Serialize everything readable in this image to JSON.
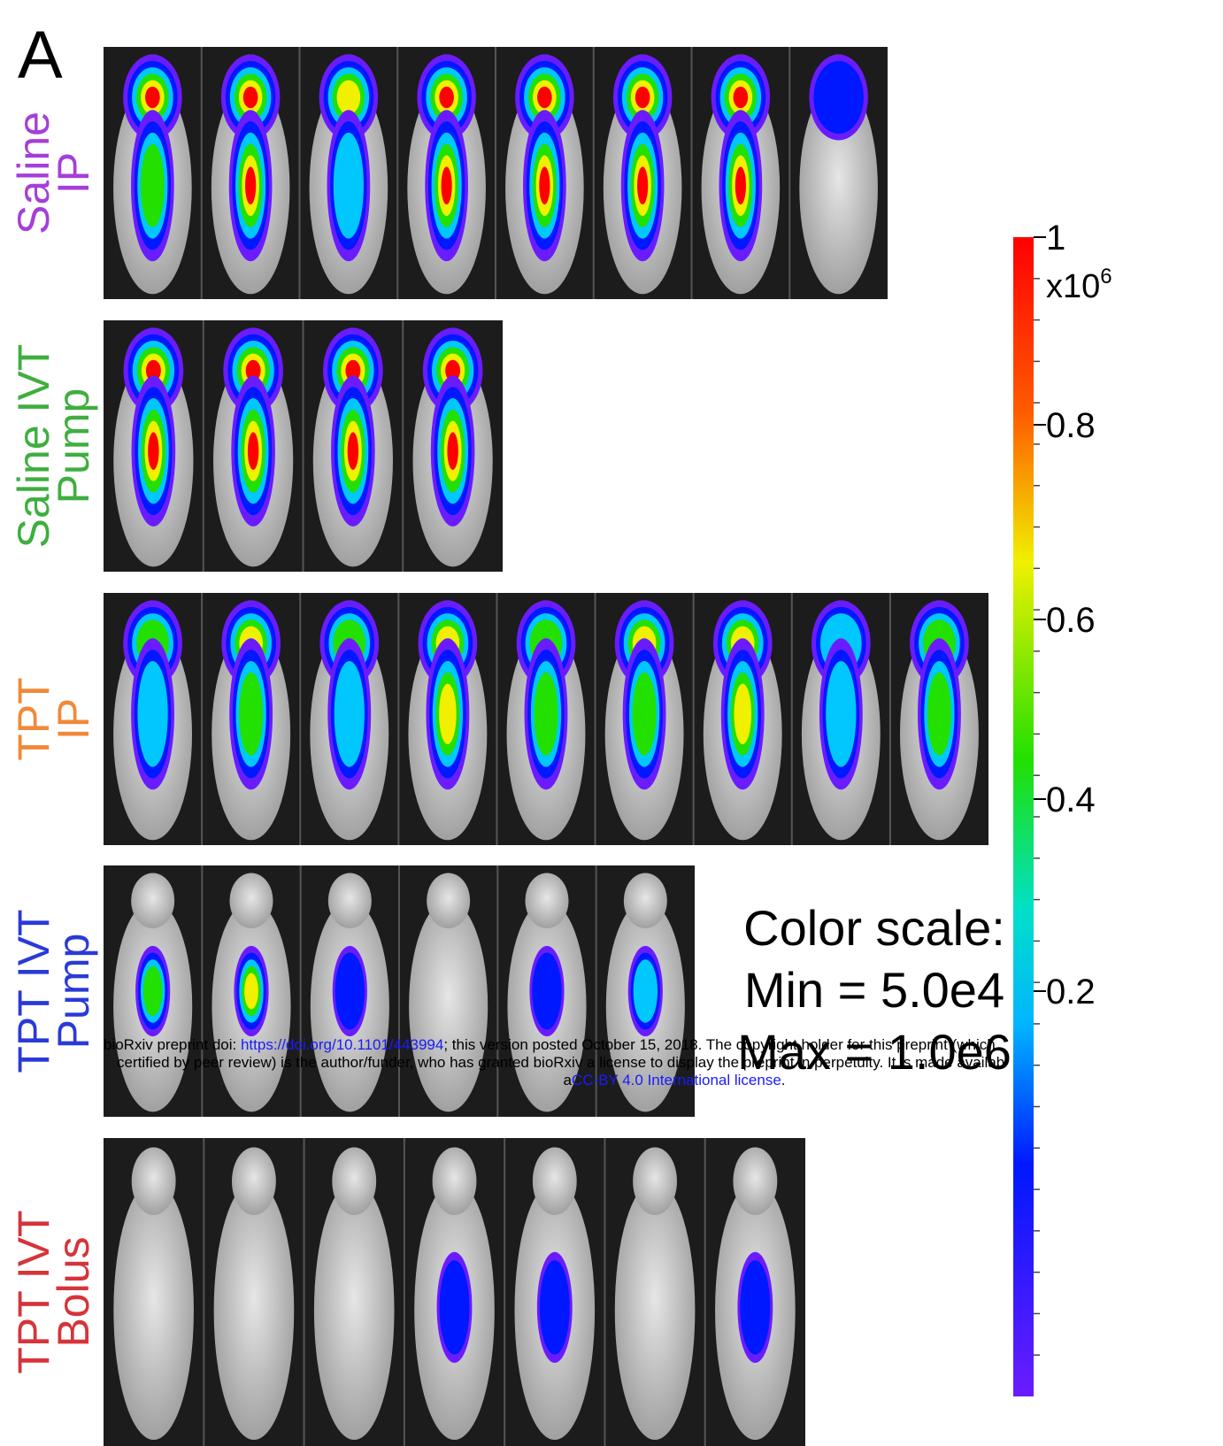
{
  "panel_label": "A",
  "groups": [
    {
      "lines": [
        "Saline",
        "IP"
      ],
      "color": "#a53fd8"
    },
    {
      "lines": [
        "Saline IVT",
        "Pump"
      ],
      "color": "#3fae3f"
    },
    {
      "lines": [
        "TPT",
        "IP"
      ],
      "color": "#f0893a"
    },
    {
      "lines": [
        "TPT IVT",
        "Pump"
      ],
      "color": "#2a3ad8"
    },
    {
      "lines": [
        "TPT IVT",
        "Bolus"
      ],
      "color": "#d6343a"
    }
  ],
  "colorbar": {
    "ticks": [
      "1",
      "0.8",
      "0.6",
      "0.4",
      "0.2"
    ],
    "exponent_base": "x10",
    "exponent": "6"
  },
  "color_scale": [
    "Color scale:",
    "Min = 5.0e4",
    "Max = 1.0e6"
  ],
  "notice": {
    "line1": [
      "bioRxiv preprint doi: ",
      "https://doi.org/10.1101/443994",
      "; this version posted October 15, 2018. The copyright holder for this preprint (which"
    ],
    "line2": "certified by peer review) is the author/funder, who has granted bioRxiv a license to display the preprint in perpetuity. It is made availab",
    "line3": [
      "a",
      "CC-BY 4.0 International license",
      "."
    ]
  }
}
